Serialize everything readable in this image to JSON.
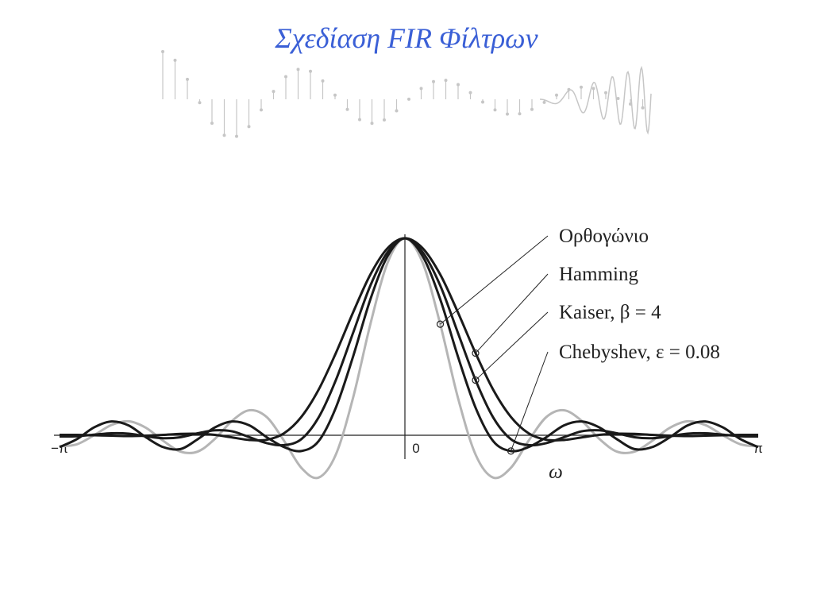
{
  "title": "Σχεδίαση  FIR Φίλτρων",
  "chart_data": {
    "type": "line",
    "x_label": "ω",
    "x": [
      -1,
      -0.95,
      -0.9,
      -0.85,
      -0.8,
      -0.75,
      -0.7,
      -0.65,
      -0.6,
      -0.55,
      -0.5,
      -0.45,
      -0.4,
      -0.35,
      -0.3,
      -0.25,
      -0.2,
      -0.15,
      -0.1,
      -0.05,
      0,
      0.05,
      0.1,
      0.15,
      0.2,
      0.25,
      0.3,
      0.35,
      0.4,
      0.45,
      0.5,
      0.55,
      0.6,
      0.65,
      0.7,
      0.75,
      0.8,
      0.85,
      0.9,
      0.95,
      1
    ],
    "xlim": [
      -1,
      1
    ],
    "xticks": [
      {
        "value": -1,
        "label": "−π"
      },
      0,
      {
        "value": 1,
        "label": "π"
      }
    ],
    "ylim": [
      -0.25,
      1.05
    ],
    "series": [
      {
        "name": "Ορθογώνιο",
        "color": "#b5b5b5",
        "values": [
          -0.056,
          -0.046,
          0,
          0.052,
          0.071,
          0.038,
          -0.028,
          -0.083,
          -0.083,
          -0.018,
          0.074,
          0.127,
          0.092,
          -0.028,
          -0.165,
          -0.215,
          -0.098,
          0.191,
          0.564,
          0.877,
          1,
          0.877,
          0.564,
          0.191,
          -0.098,
          -0.215,
          -0.165,
          -0.028,
          0.092,
          0.127,
          0.074,
          -0.018,
          -0.083,
          -0.083,
          -0.028,
          0.038,
          0.071,
          0.052,
          0,
          -0.046,
          -0.056
        ]
      },
      {
        "name": "Hamming",
        "color": "#1a1a1a",
        "values": [
          0.002,
          0.002,
          0,
          -0.002,
          -0.004,
          -0.002,
          0.002,
          0.007,
          0.008,
          0.002,
          -0.011,
          -0.024,
          -0.023,
          0.01,
          0.093,
          0.231,
          0.417,
          0.624,
          0.816,
          0.95,
          1,
          0.95,
          0.816,
          0.624,
          0.417,
          0.231,
          0.093,
          0.01,
          -0.023,
          -0.024,
          -0.011,
          0.002,
          0.008,
          0.007,
          0.002,
          -0.002,
          -0.004,
          -0.002,
          0,
          0.002,
          0.002
        ]
      },
      {
        "name": "Kaiser, β = 4",
        "color": "#1a1a1a",
        "values": [
          -0.006,
          -0.005,
          0.003,
          0.01,
          0.008,
          -0.005,
          -0.015,
          -0.01,
          0.01,
          0.025,
          0.02,
          -0.01,
          -0.04,
          -0.05,
          -0.02,
          0.09,
          0.28,
          0.52,
          0.76,
          0.93,
          1,
          0.93,
          0.76,
          0.52,
          0.28,
          0.09,
          -0.02,
          -0.05,
          -0.04,
          -0.01,
          0.02,
          0.025,
          0.01,
          -0.01,
          -0.015,
          -0.005,
          0.008,
          0.01,
          0.003,
          -0.005,
          -0.006
        ]
      },
      {
        "name": "Chebyshev, ε = 0.08",
        "color": "#1a1a1a",
        "values": [
          -0.06,
          -0.02,
          0.04,
          0.07,
          0.05,
          -0.01,
          -0.06,
          -0.07,
          -0.02,
          0.04,
          0.07,
          0.05,
          -0.01,
          -0.06,
          -0.08,
          -0.03,
          0.14,
          0.4,
          0.69,
          0.91,
          1,
          0.91,
          0.69,
          0.4,
          0.14,
          -0.03,
          -0.08,
          -0.06,
          -0.01,
          0.05,
          0.07,
          0.04,
          -0.02,
          -0.07,
          -0.06,
          -0.01,
          0.05,
          0.07,
          0.04,
          -0.02,
          -0.06
        ]
      }
    ]
  }
}
